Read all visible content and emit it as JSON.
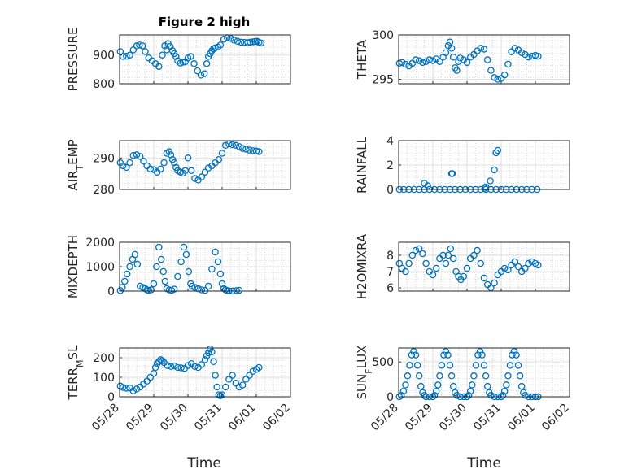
{
  "figure": {
    "title": "Figure 2 high",
    "xlabel": "Time",
    "x_tick_labels": [
      "05/28",
      "05/29",
      "05/30",
      "05/31",
      "06/01",
      "06/02"
    ],
    "marker_color": "#0072BD",
    "grid_color": "#dfdfdf",
    "minor_grid_color": "#bdbdbd"
  },
  "chart_data": [
    {
      "type": "scatter",
      "ylabel": "PRESSURE",
      "xlim": [
        0,
        5
      ],
      "ylim": [
        800,
        970
      ],
      "yticks": [
        800,
        900
      ],
      "grid": true,
      "minor_grid": true,
      "x": [
        0.02,
        0.1,
        0.2,
        0.3,
        0.4,
        0.5,
        0.58,
        0.67,
        0.75,
        0.85,
        0.95,
        1.05,
        1.15,
        1.25,
        1.32,
        1.38,
        1.42,
        1.48,
        1.55,
        1.6,
        1.65,
        1.7,
        1.78,
        1.85,
        1.92,
        2.0,
        2.08,
        2.18,
        2.28,
        2.38,
        2.48,
        2.55,
        2.6,
        2.65,
        2.7,
        2.75,
        2.8,
        2.88,
        2.95,
        3.05,
        3.15,
        3.25,
        3.35,
        3.45,
        3.55,
        3.65,
        3.75,
        3.82,
        3.9,
        3.96,
        4.02,
        4.08,
        4.14
      ],
      "y": [
        912,
        895,
        896,
        900,
        918,
        932,
        935,
        932,
        912,
        890,
        880,
        870,
        860,
        900,
        932,
        918,
        940,
        930,
        915,
        905,
        895,
        880,
        872,
        875,
        876,
        890,
        895,
        870,
        845,
        830,
        835,
        870,
        895,
        905,
        915,
        922,
        925,
        928,
        935,
        955,
        960,
        958,
        952,
        948,
        945,
        944,
        943,
        945,
        946,
        947,
        948,
        944,
        942
      ]
    },
    {
      "type": "scatter",
      "ylabel": "THETA",
      "xlim": [
        0,
        5
      ],
      "ylim": [
        294.5,
        300
      ],
      "yticks": [
        295,
        300
      ],
      "grid": true,
      "minor_grid": true,
      "x": [
        0.02,
        0.1,
        0.2,
        0.3,
        0.4,
        0.5,
        0.6,
        0.7,
        0.8,
        0.9,
        1.0,
        1.1,
        1.2,
        1.3,
        1.38,
        1.45,
        1.5,
        1.55,
        1.6,
        1.65,
        1.7,
        1.75,
        1.8,
        1.9,
        2.0,
        2.1,
        2.2,
        2.3,
        2.4,
        2.5,
        2.6,
        2.7,
        2.8,
        2.9,
        3.0,
        3.1,
        3.2,
        3.3,
        3.4,
        3.5,
        3.6,
        3.7,
        3.8,
        3.9,
        4.0,
        4.08
      ],
      "y": [
        296.8,
        296.9,
        296.7,
        296.5,
        296.8,
        297.2,
        297.1,
        296.9,
        297.0,
        297.2,
        297.1,
        297.3,
        297.0,
        297.5,
        298.0,
        298.8,
        299.2,
        298.5,
        297.5,
        296.3,
        296.0,
        297.0,
        297.4,
        297.2,
        296.9,
        297.5,
        297.8,
        298.2,
        298.5,
        298.4,
        297.2,
        296.0,
        295.2,
        295.0,
        295.1,
        295.5,
        296.7,
        298.1,
        298.5,
        298.3,
        298.0,
        297.8,
        297.5,
        297.6,
        297.7,
        297.6
      ]
    },
    {
      "type": "scatter",
      "ylabel": "AIR_TEMP",
      "xlim": [
        0,
        5
      ],
      "ylim": [
        280,
        295.5
      ],
      "yticks": [
        280,
        290
      ],
      "grid": true,
      "minor_grid": true,
      "x": [
        0.02,
        0.1,
        0.2,
        0.3,
        0.4,
        0.5,
        0.6,
        0.7,
        0.8,
        0.9,
        1.0,
        1.1,
        1.2,
        1.3,
        1.38,
        1.45,
        1.5,
        1.55,
        1.6,
        1.65,
        1.7,
        1.78,
        1.85,
        1.92,
        2.0,
        2.1,
        2.2,
        2.3,
        2.4,
        2.5,
        2.6,
        2.7,
        2.8,
        2.9,
        3.0,
        3.1,
        3.2,
        3.3,
        3.4,
        3.5,
        3.6,
        3.7,
        3.8,
        3.9,
        4.0,
        4.08
      ],
      "y": [
        288.5,
        287.5,
        287.0,
        288.5,
        290.8,
        291.0,
        290.5,
        289.0,
        287.5,
        286.5,
        286.3,
        285.5,
        286.5,
        288.5,
        291.5,
        292.0,
        291.0,
        289.5,
        288.5,
        287.0,
        286.0,
        285.5,
        285.2,
        286.0,
        290.0,
        286.0,
        283.5,
        283.0,
        284.0,
        285.5,
        286.8,
        287.5,
        288.5,
        289.5,
        291.5,
        294.0,
        294.5,
        294.2,
        294.0,
        293.6,
        293.0,
        292.8,
        292.5,
        292.3,
        292.2,
        292.0
      ]
    },
    {
      "type": "scatter",
      "ylabel": "RAINFALL",
      "xlim": [
        0,
        5
      ],
      "ylim": [
        0,
        4
      ],
      "yticks": [
        0,
        2,
        4
      ],
      "grid": true,
      "minor_grid": true,
      "x": [
        0.02,
        0.15,
        0.3,
        0.45,
        0.6,
        0.75,
        0.9,
        1.05,
        1.2,
        1.35,
        1.5,
        1.65,
        1.8,
        1.95,
        2.1,
        2.25,
        2.4,
        2.55,
        2.7,
        2.85,
        3.0,
        3.15,
        3.3,
        3.45,
        3.6,
        3.75,
        3.9,
        4.05,
        0.75,
        0.85,
        1.55,
        1.57,
        2.52,
        2.55,
        2.68,
        2.8,
        2.85,
        2.9
      ],
      "y": [
        0,
        0,
        0,
        0,
        0,
        0,
        0,
        0,
        0,
        0,
        0,
        0,
        0,
        0,
        0,
        0,
        0,
        0,
        0,
        0,
        0,
        0,
        0,
        0,
        0,
        0,
        0,
        0,
        0.5,
        0.3,
        1.3,
        1.3,
        0.1,
        0.2,
        0.7,
        1.6,
        3.0,
        3.2
      ]
    },
    {
      "type": "scatter",
      "ylabel": "MIXDEPTH",
      "xlim": [
        0,
        5
      ],
      "ylim": [
        0,
        2000
      ],
      "yticks": [
        0,
        1000,
        2000
      ],
      "grid": true,
      "minor_grid": true,
      "x": [
        0.02,
        0.08,
        0.15,
        0.22,
        0.3,
        0.38,
        0.45,
        0.52,
        0.6,
        0.68,
        0.75,
        0.8,
        0.85,
        0.92,
        1.0,
        1.08,
        1.15,
        1.22,
        1.28,
        1.33,
        1.38,
        1.45,
        1.52,
        1.6,
        1.7,
        1.8,
        1.88,
        1.95,
        2.02,
        2.08,
        2.12,
        2.2,
        2.3,
        2.4,
        2.5,
        2.6,
        2.7,
        2.8,
        2.88,
        2.95,
        3.0,
        3.05,
        3.1,
        3.15,
        3.2,
        3.3,
        3.42,
        3.5
      ],
      "y": [
        20,
        150,
        400,
        700,
        1000,
        1300,
        1500,
        1100,
        200,
        150,
        100,
        50,
        30,
        50,
        300,
        1000,
        1800,
        1300,
        800,
        400,
        100,
        50,
        30,
        80,
        600,
        1200,
        1800,
        1500,
        800,
        300,
        200,
        150,
        100,
        50,
        30,
        200,
        900,
        1600,
        1200,
        700,
        300,
        100,
        50,
        20,
        10,
        5,
        20,
        30
      ]
    },
    {
      "type": "scatter",
      "ylabel": "H2OMIXRA",
      "xlim": [
        0,
        5
      ],
      "ylim": [
        5.8,
        8.8
      ],
      "yticks": [
        6,
        7,
        8
      ],
      "grid": true,
      "minor_grid": true,
      "x": [
        0.02,
        0.1,
        0.2,
        0.3,
        0.4,
        0.5,
        0.6,
        0.7,
        0.8,
        0.9,
        1.0,
        1.1,
        1.2,
        1.3,
        1.38,
        1.45,
        1.52,
        1.6,
        1.68,
        1.75,
        1.82,
        1.9,
        2.0,
        2.1,
        2.2,
        2.3,
        2.4,
        2.5,
        2.6,
        2.7,
        2.8,
        2.9,
        3.0,
        3.1,
        3.2,
        3.3,
        3.4,
        3.5,
        3.6,
        3.7,
        3.8,
        3.9,
        4.0,
        4.08
      ],
      "y": [
        7.5,
        7.2,
        7.0,
        7.5,
        8.0,
        8.3,
        8.4,
        8.1,
        7.5,
        7.0,
        6.8,
        7.2,
        7.8,
        8.0,
        7.5,
        8.0,
        8.4,
        7.8,
        7.0,
        6.7,
        6.5,
        6.7,
        7.2,
        7.8,
        8.0,
        8.3,
        7.5,
        6.6,
        6.2,
        6.0,
        6.3,
        6.8,
        7.0,
        7.2,
        7.1,
        7.4,
        7.6,
        7.3,
        7.0,
        7.2,
        7.5,
        7.6,
        7.5,
        7.4
      ]
    },
    {
      "type": "scatter",
      "ylabel": "TERR_MSL",
      "xlim": [
        0,
        5
      ],
      "ylim": [
        0,
        250
      ],
      "yticks": [
        0,
        100,
        200
      ],
      "grid": true,
      "minor_grid": true,
      "x": [
        0.02,
        0.1,
        0.2,
        0.3,
        0.4,
        0.5,
        0.6,
        0.7,
        0.8,
        0.9,
        1.0,
        1.05,
        1.1,
        1.15,
        1.2,
        1.25,
        1.3,
        1.4,
        1.5,
        1.6,
        1.7,
        1.8,
        1.9,
        2.0,
        2.1,
        2.2,
        2.3,
        2.4,
        2.5,
        2.55,
        2.6,
        2.65,
        2.7,
        2.75,
        2.8,
        2.85,
        2.9,
        2.95,
        3.0,
        3.1,
        3.2,
        3.3,
        3.4,
        3.5,
        3.6,
        3.7,
        3.8,
        3.9,
        4.0,
        4.08
      ],
      "y": [
        55,
        48,
        44,
        45,
        30,
        40,
        50,
        65,
        80,
        100,
        120,
        150,
        170,
        180,
        190,
        185,
        175,
        160,
        155,
        158,
        150,
        148,
        145,
        160,
        170,
        155,
        150,
        165,
        190,
        210,
        225,
        245,
        230,
        180,
        110,
        50,
        10,
        5,
        10,
        50,
        90,
        110,
        70,
        50,
        60,
        90,
        110,
        130,
        140,
        150
      ]
    },
    {
      "type": "scatter",
      "ylabel": "SUN_FLUX",
      "xlim": [
        0,
        5
      ],
      "ylim": [
        0,
        700
      ],
      "yticks": [
        0,
        500
      ],
      "grid": true,
      "minor_grid": true,
      "x": [
        0.02,
        0.08,
        0.14,
        0.2,
        0.26,
        0.32,
        0.38,
        0.44,
        0.5,
        0.55,
        0.6,
        0.65,
        0.7,
        0.75,
        0.8,
        0.9,
        1.0,
        1.05,
        1.1,
        1.15,
        1.2,
        1.26,
        1.32,
        1.38,
        1.44,
        1.5,
        1.55,
        1.6,
        1.65,
        1.7,
        1.8,
        1.9,
        2.0,
        2.05,
        2.1,
        2.15,
        2.2,
        2.26,
        2.32,
        2.38,
        2.44,
        2.5,
        2.55,
        2.6,
        2.65,
        2.7,
        2.8,
        2.9,
        3.0,
        3.05,
        3.1,
        3.15,
        3.2,
        3.26,
        3.32,
        3.38,
        3.44,
        3.5,
        3.55,
        3.6,
        3.65,
        3.7,
        3.8,
        3.9,
        4.0,
        4.08
      ],
      "y": [
        0,
        20,
        80,
        170,
        300,
        450,
        600,
        650,
        600,
        450,
        300,
        150,
        60,
        20,
        0,
        0,
        0,
        20,
        80,
        170,
        300,
        450,
        600,
        650,
        600,
        450,
        300,
        150,
        60,
        20,
        0,
        0,
        0,
        20,
        80,
        170,
        300,
        450,
        600,
        650,
        600,
        450,
        300,
        150,
        60,
        20,
        0,
        0,
        0,
        20,
        80,
        170,
        300,
        450,
        600,
        650,
        600,
        450,
        300,
        150,
        60,
        20,
        0,
        0,
        0,
        0
      ]
    }
  ]
}
